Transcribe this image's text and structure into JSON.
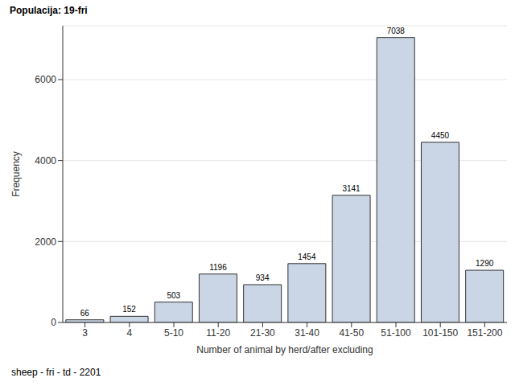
{
  "chart_data": {
    "type": "bar",
    "title": "Populacija: 19-fri",
    "x_label": "Number of animal by herd/after excluding",
    "y_label": "Frequency",
    "annotations": [
      "sheep - fri - td - 2201"
    ],
    "categories": [
      "3",
      "4",
      "5-10",
      "11-20",
      "21-30",
      "31-40",
      "41-50",
      "51-100",
      "101-150",
      "151-200"
    ],
    "values": [
      66,
      152,
      503,
      1196,
      934,
      1454,
      3141,
      7038,
      4450,
      1290
    ],
    "color": "#cad5e5",
    "ylim": [
      0,
      7330
    ],
    "yticks": [
      0,
      2000,
      4000,
      6000
    ],
    "grid": true,
    "data_labels": true
  }
}
